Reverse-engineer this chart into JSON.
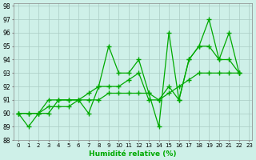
{
  "xlabel": "Humidité relative (%)",
  "xlim": [
    -0.5,
    23.3
  ],
  "ylim": [
    88,
    98.2
  ],
  "yticks": [
    88,
    89,
    90,
    91,
    92,
    93,
    94,
    95,
    96,
    97,
    98
  ],
  "xticks": [
    0,
    1,
    2,
    3,
    4,
    5,
    6,
    7,
    8,
    9,
    10,
    11,
    12,
    13,
    14,
    15,
    16,
    17,
    18,
    19,
    20,
    21,
    22,
    23
  ],
  "bg_color": "#cef0e8",
  "grid_color": "#aaccc4",
  "line_color": "#00aa00",
  "line_width": 0.9,
  "marker": "+",
  "marker_size": 4,
  "marker_lw": 1.0,
  "series": [
    [
      90.0,
      89.0,
      90.0,
      90.0,
      91.0,
      91.0,
      91.0,
      90.0,
      92.0,
      95.0,
      93.0,
      93.0,
      94.0,
      91.5,
      89.0,
      96.0,
      91.0,
      94.0,
      95.0,
      97.0,
      94.0,
      96.0,
      93.0
    ],
    [
      90.0,
      90.0,
      90.0,
      91.0,
      91.0,
      91.0,
      91.0,
      91.5,
      92.0,
      92.0,
      92.0,
      92.5,
      93.0,
      91.0,
      91.0,
      92.0,
      91.0,
      94.0,
      95.0,
      95.0,
      94.0,
      94.0,
      93.0
    ],
    [
      90.0,
      90.0,
      90.0,
      90.5,
      90.5,
      90.5,
      91.0,
      91.0,
      91.0,
      91.5,
      91.5,
      91.5,
      91.5,
      91.5,
      91.0,
      91.5,
      92.0,
      92.5,
      93.0,
      93.0,
      93.0,
      93.0,
      93.0
    ]
  ]
}
